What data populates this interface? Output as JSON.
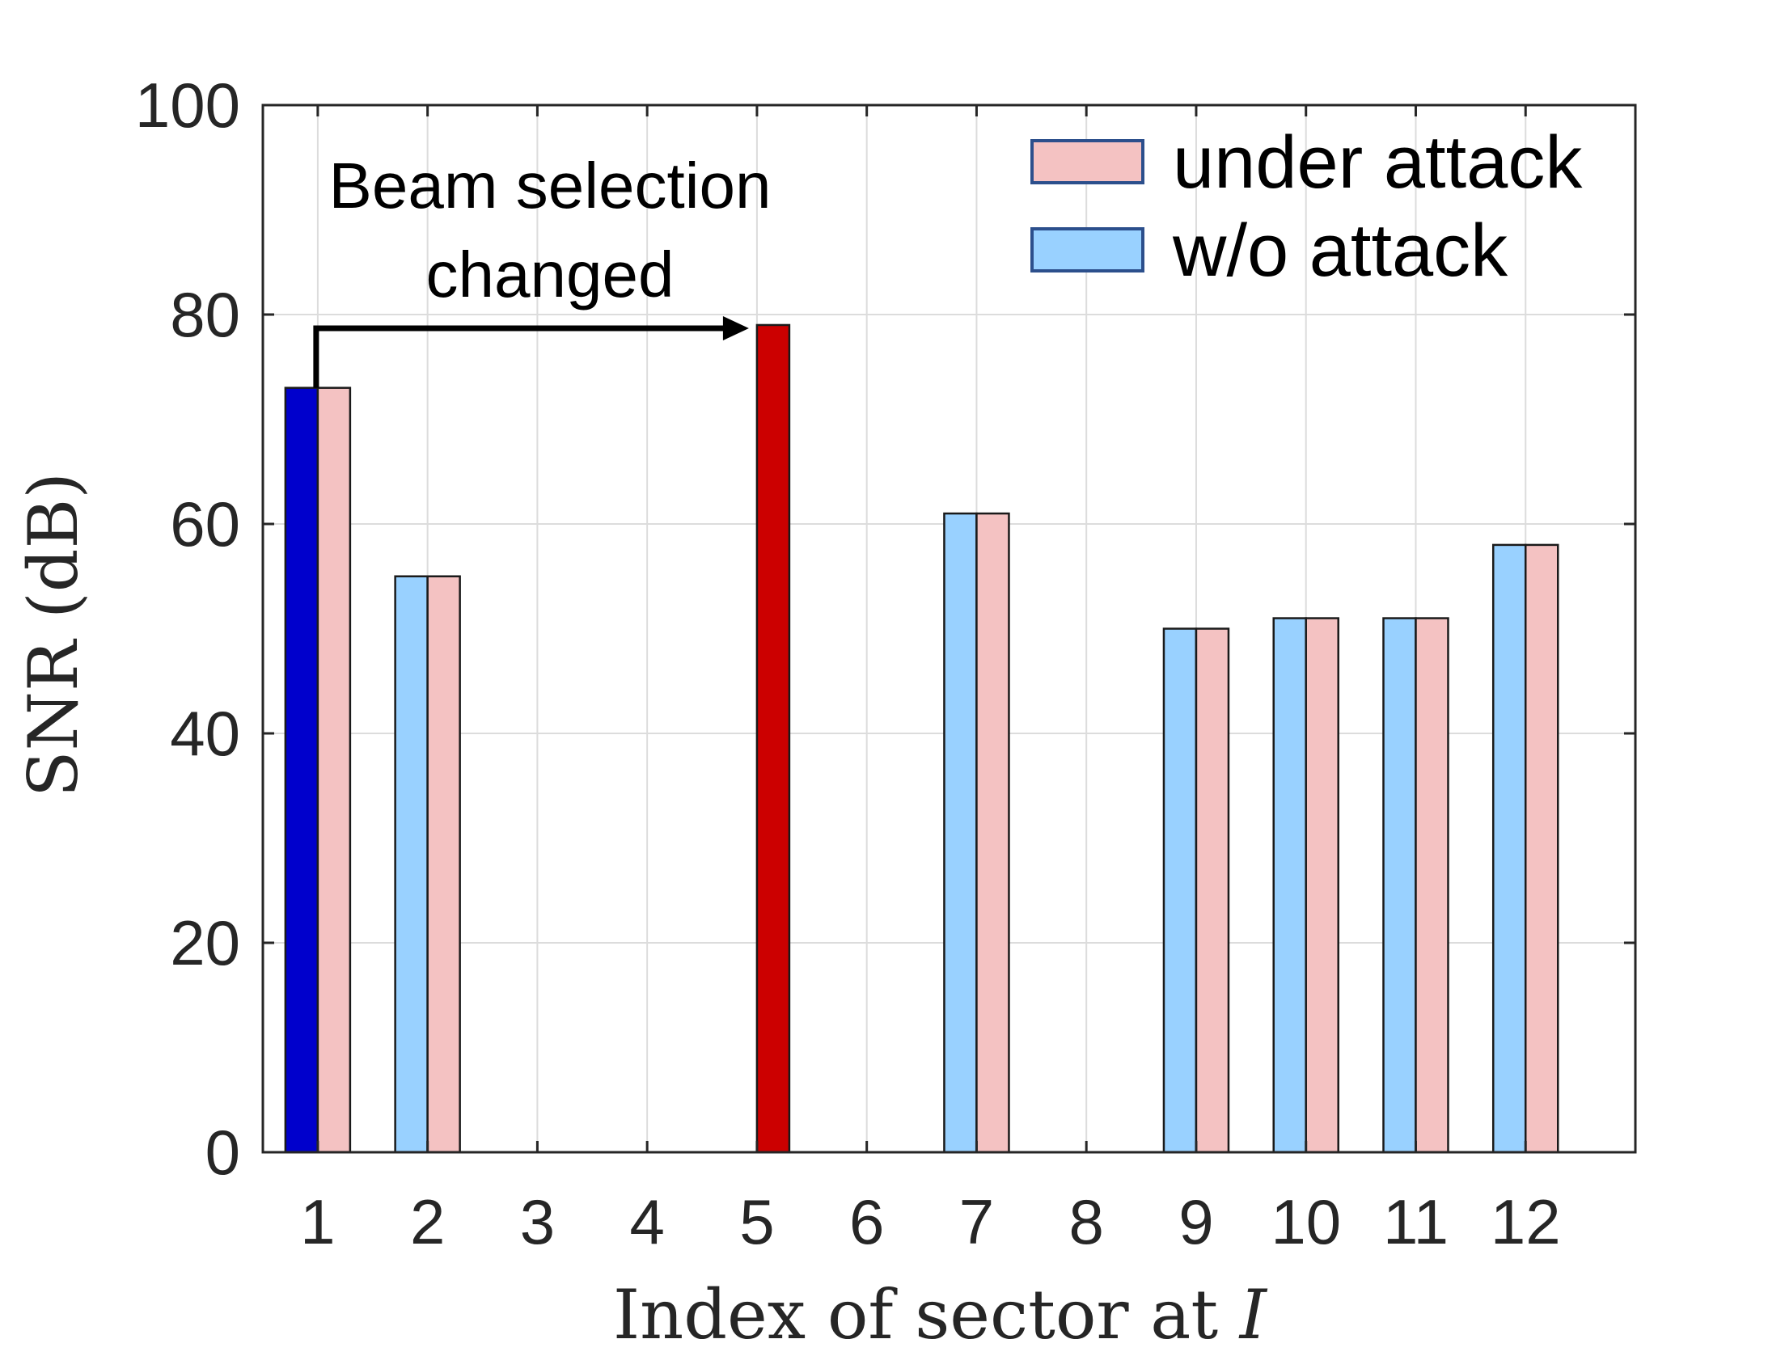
{
  "chart_data": {
    "type": "bar",
    "xlabel_text": "Index of sector at ",
    "xlabel_var": "I",
    "ylabel": "SNR (dB)",
    "ylim": [
      0,
      100
    ],
    "yticks": [
      0,
      20,
      40,
      60,
      80,
      100
    ],
    "grid": true,
    "legend_position": "top-right",
    "categories": [
      "1",
      "2",
      "3",
      "4",
      "5",
      "6",
      "7",
      "8",
      "9",
      "10",
      "11",
      "12"
    ],
    "series": [
      {
        "name": "w/o attack",
        "color": "#99d1ff",
        "values": [
          73,
          55,
          0,
          0,
          0,
          0,
          61,
          0,
          50,
          51,
          51,
          58
        ]
      },
      {
        "name": "under attack",
        "color": "#f4c2c2",
        "values": [
          73,
          55,
          0,
          0,
          79,
          0,
          61,
          0,
          50,
          51,
          51,
          58
        ]
      }
    ],
    "highlights": [
      {
        "series": "w/o attack",
        "category": "1",
        "color": "#0000cc"
      },
      {
        "series": "under attack",
        "category": "5",
        "color": "#cc0000"
      }
    ],
    "annotation": {
      "lines": [
        "Beam selection",
        "changed"
      ],
      "from_category": "1",
      "to_category": "5"
    }
  }
}
